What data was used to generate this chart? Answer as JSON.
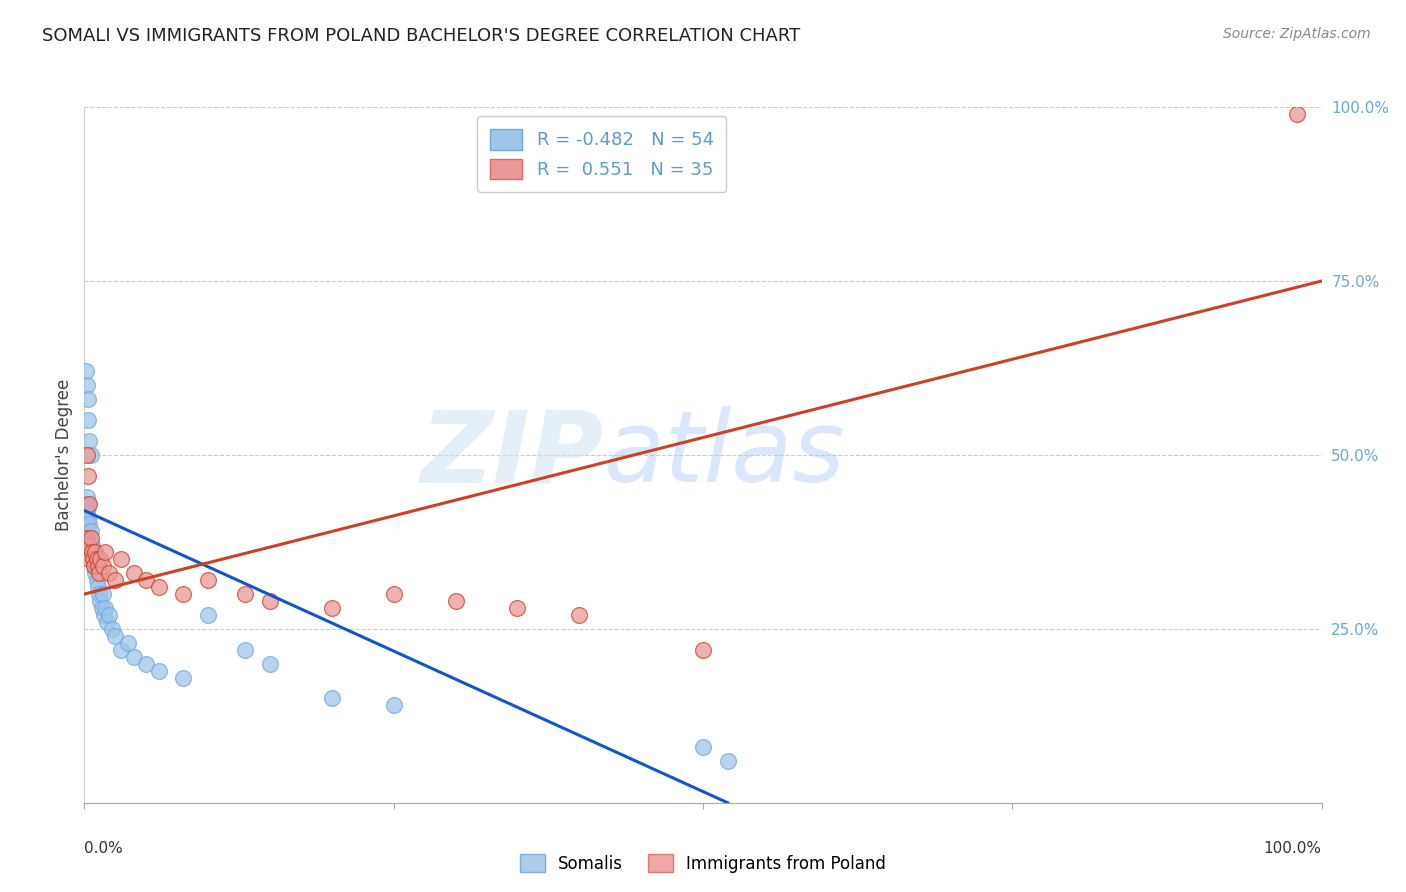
{
  "title": "SOMALI VS IMMIGRANTS FROM POLAND BACHELOR'S DEGREE CORRELATION CHART",
  "source": "Source: ZipAtlas.com",
  "ylabel": "Bachelor's Degree",
  "right_yticks": [
    "100.0%",
    "75.0%",
    "50.0%",
    "25.0%"
  ],
  "right_ytick_vals": [
    1.0,
    0.75,
    0.5,
    0.25
  ],
  "watermark_zip": "ZIP",
  "watermark_atlas": "atlas",
  "somali_color": "#9fc5e8",
  "somali_edge_color": "#6fa8dc",
  "poland_color": "#ea9999",
  "poland_edge_color": "#cc4125",
  "somali_line_color": "#1155cc",
  "poland_line_color": "#cc4125",
  "background_color": "#ffffff",
  "grid_color": "#cccccc",
  "xlim": [
    0.0,
    1.0
  ],
  "ylim": [
    0.0,
    1.0
  ],
  "somali_x": [
    0.001,
    0.001,
    0.001,
    0.002,
    0.002,
    0.002,
    0.002,
    0.003,
    0.003,
    0.003,
    0.003,
    0.004,
    0.004,
    0.004,
    0.005,
    0.005,
    0.005,
    0.006,
    0.006,
    0.007,
    0.007,
    0.008,
    0.008,
    0.009,
    0.009,
    0.01,
    0.01,
    0.011,
    0.012,
    0.013,
    0.014,
    0.015,
    0.016,
    0.017,
    0.018,
    0.02,
    0.022,
    0.025,
    0.03,
    0.035,
    0.04,
    0.05,
    0.06,
    0.08,
    0.1,
    0.13,
    0.15,
    0.2,
    0.25,
    0.001,
    0.002,
    0.003,
    0.5,
    0.52
  ],
  "somali_y": [
    0.42,
    0.43,
    0.41,
    0.44,
    0.4,
    0.38,
    0.42,
    0.39,
    0.41,
    0.43,
    0.55,
    0.4,
    0.38,
    0.52,
    0.37,
    0.39,
    0.5,
    0.36,
    0.37,
    0.35,
    0.36,
    0.34,
    0.36,
    0.33,
    0.35,
    0.32,
    0.34,
    0.31,
    0.3,
    0.29,
    0.28,
    0.3,
    0.27,
    0.28,
    0.26,
    0.27,
    0.25,
    0.24,
    0.22,
    0.23,
    0.21,
    0.2,
    0.19,
    0.18,
    0.27,
    0.22,
    0.2,
    0.15,
    0.14,
    0.62,
    0.6,
    0.58,
    0.08,
    0.06
  ],
  "poland_x": [
    0.001,
    0.002,
    0.003,
    0.004,
    0.005,
    0.006,
    0.007,
    0.008,
    0.009,
    0.01,
    0.011,
    0.012,
    0.013,
    0.015,
    0.017,
    0.02,
    0.025,
    0.03,
    0.04,
    0.05,
    0.06,
    0.08,
    0.1,
    0.13,
    0.15,
    0.2,
    0.25,
    0.3,
    0.35,
    0.4,
    0.002,
    0.003,
    0.004,
    0.5,
    0.98
  ],
  "poland_y": [
    0.38,
    0.36,
    0.37,
    0.35,
    0.38,
    0.36,
    0.35,
    0.34,
    0.36,
    0.35,
    0.34,
    0.33,
    0.35,
    0.34,
    0.36,
    0.33,
    0.32,
    0.35,
    0.33,
    0.32,
    0.31,
    0.3,
    0.32,
    0.3,
    0.29,
    0.28,
    0.3,
    0.29,
    0.28,
    0.27,
    0.5,
    0.47,
    0.43,
    0.22,
    0.99
  ],
  "somali_line_x": [
    0.0,
    0.52
  ],
  "somali_line_y": [
    0.42,
    0.0
  ],
  "poland_line_x": [
    0.0,
    1.0
  ],
  "poland_line_y": [
    0.3,
    0.75
  ]
}
